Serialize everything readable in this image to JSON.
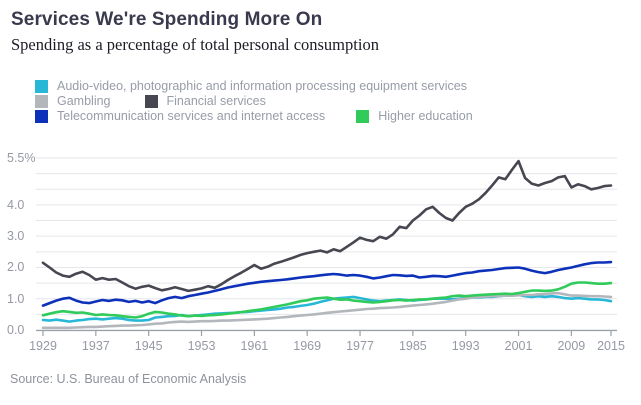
{
  "header": {
    "title": "Services We're Spending More On",
    "subtitle": "Spending as a percentage of total personal consumption"
  },
  "source": "Source: U.S. Bureau of Economic Analysis",
  "chart_data": {
    "type": "line",
    "title": "Services We're Spending More On",
    "subtitle": "Spending as a percentage of total personal consumption",
    "xlabel": "",
    "ylabel": "",
    "ylim": [
      0,
      5.5
    ],
    "grid_step": 0.5,
    "grid": true,
    "legend_position": "top",
    "x": [
      1929,
      1930,
      1931,
      1932,
      1933,
      1934,
      1935,
      1936,
      1937,
      1938,
      1939,
      1940,
      1941,
      1942,
      1943,
      1944,
      1945,
      1946,
      1947,
      1948,
      1949,
      1950,
      1951,
      1952,
      1953,
      1954,
      1955,
      1956,
      1957,
      1958,
      1959,
      1960,
      1961,
      1962,
      1963,
      1964,
      1965,
      1966,
      1967,
      1968,
      1969,
      1970,
      1971,
      1972,
      1973,
      1974,
      1975,
      1976,
      1977,
      1978,
      1979,
      1980,
      1981,
      1982,
      1983,
      1984,
      1985,
      1986,
      1987,
      1988,
      1989,
      1990,
      1991,
      1992,
      1993,
      1994,
      1995,
      1996,
      1997,
      1998,
      1999,
      2000,
      2001,
      2002,
      2003,
      2004,
      2005,
      2006,
      2007,
      2008,
      2009,
      2010,
      2011,
      2012,
      2013,
      2014,
      2015
    ],
    "xticks": [
      1929,
      1937,
      1945,
      1953,
      1961,
      1969,
      1977,
      1985,
      1993,
      2001,
      2009,
      2015
    ],
    "yticks": [
      {
        "v": 5.5,
        "label": "5.5%"
      },
      {
        "v": 4.0,
        "label": "4.0"
      },
      {
        "v": 3.0,
        "label": "3.0"
      },
      {
        "v": 2.0,
        "label": "2.0"
      },
      {
        "v": 1.0,
        "label": "1.0"
      },
      {
        "v": 0.0,
        "label": "0.0"
      }
    ],
    "series": [
      {
        "name": "Audio-video, photographic and information processing equipment services",
        "color": "#29b7d8",
        "values": [
          0.32,
          0.3,
          0.33,
          0.3,
          0.27,
          0.3,
          0.32,
          0.35,
          0.36,
          0.34,
          0.36,
          0.38,
          0.36,
          0.32,
          0.3,
          0.3,
          0.32,
          0.4,
          0.42,
          0.44,
          0.45,
          0.48,
          0.44,
          0.46,
          0.48,
          0.5,
          0.52,
          0.53,
          0.54,
          0.55,
          0.57,
          0.58,
          0.6,
          0.62,
          0.64,
          0.66,
          0.68,
          0.72,
          0.74,
          0.77,
          0.8,
          0.84,
          0.9,
          0.95,
          1.0,
          1.02,
          1.04,
          1.06,
          1.02,
          0.98,
          0.94,
          0.92,
          0.94,
          0.96,
          0.98,
          0.96,
          0.94,
          0.96,
          0.98,
          1.0,
          1.0,
          1.0,
          0.98,
          1.0,
          1.02,
          1.04,
          1.04,
          1.06,
          1.06,
          1.08,
          1.1,
          1.1,
          1.12,
          1.08,
          1.06,
          1.08,
          1.06,
          1.08,
          1.06,
          1.02,
          1.0,
          1.02,
          1.0,
          0.98,
          0.98,
          0.96,
          0.92
        ]
      },
      {
        "name": "Gambling",
        "color": "#b3b7bc",
        "values": [
          0.07,
          0.07,
          0.07,
          0.07,
          0.07,
          0.08,
          0.09,
          0.1,
          0.1,
          0.11,
          0.12,
          0.13,
          0.14,
          0.14,
          0.15,
          0.16,
          0.18,
          0.2,
          0.21,
          0.24,
          0.26,
          0.27,
          0.26,
          0.27,
          0.28,
          0.28,
          0.29,
          0.3,
          0.3,
          0.31,
          0.32,
          0.33,
          0.34,
          0.35,
          0.36,
          0.38,
          0.4,
          0.42,
          0.44,
          0.46,
          0.48,
          0.5,
          0.52,
          0.55,
          0.57,
          0.59,
          0.61,
          0.63,
          0.65,
          0.67,
          0.68,
          0.7,
          0.71,
          0.72,
          0.74,
          0.76,
          0.78,
          0.8,
          0.82,
          0.84,
          0.87,
          0.9,
          0.94,
          0.98,
          1.0,
          1.04,
          1.06,
          1.07,
          1.08,
          1.09,
          1.1,
          1.1,
          1.11,
          1.12,
          1.12,
          1.14,
          1.15,
          1.17,
          1.18,
          1.14,
          1.1,
          1.1,
          1.09,
          1.08,
          1.08,
          1.07,
          1.06
        ]
      },
      {
        "name": "Financial services",
        "color": "#474752",
        "values": [
          2.15,
          2.0,
          1.84,
          1.74,
          1.7,
          1.8,
          1.86,
          1.76,
          1.61,
          1.66,
          1.61,
          1.63,
          1.52,
          1.4,
          1.32,
          1.38,
          1.42,
          1.34,
          1.27,
          1.31,
          1.37,
          1.31,
          1.25,
          1.29,
          1.33,
          1.4,
          1.35,
          1.46,
          1.6,
          1.72,
          1.83,
          1.95,
          2.08,
          1.96,
          2.02,
          2.12,
          2.18,
          2.25,
          2.32,
          2.4,
          2.46,
          2.5,
          2.54,
          2.48,
          2.58,
          2.52,
          2.66,
          2.8,
          2.95,
          2.88,
          2.84,
          2.98,
          2.92,
          3.06,
          3.3,
          3.26,
          3.5,
          3.66,
          3.86,
          3.94,
          3.74,
          3.58,
          3.5,
          3.74,
          3.94,
          4.04,
          4.18,
          4.38,
          4.62,
          4.88,
          4.82,
          5.12,
          5.4,
          4.86,
          4.68,
          4.62,
          4.7,
          4.76,
          4.88,
          4.92,
          4.56,
          4.66,
          4.6,
          4.5,
          4.54,
          4.6,
          4.62
        ]
      },
      {
        "name": "Telecommunication services and internet access",
        "color": "#0e31ba",
        "values": [
          0.78,
          0.86,
          0.94,
          1.0,
          1.03,
          0.94,
          0.88,
          0.86,
          0.91,
          0.96,
          0.93,
          0.97,
          0.95,
          0.9,
          0.93,
          0.88,
          0.92,
          0.86,
          0.95,
          1.02,
          1.06,
          1.02,
          1.08,
          1.12,
          1.16,
          1.2,
          1.25,
          1.3,
          1.36,
          1.4,
          1.44,
          1.48,
          1.51,
          1.54,
          1.56,
          1.58,
          1.6,
          1.62,
          1.65,
          1.68,
          1.7,
          1.72,
          1.75,
          1.77,
          1.79,
          1.77,
          1.74,
          1.76,
          1.74,
          1.7,
          1.65,
          1.68,
          1.72,
          1.76,
          1.75,
          1.73,
          1.74,
          1.68,
          1.7,
          1.73,
          1.72,
          1.7,
          1.74,
          1.78,
          1.82,
          1.84,
          1.88,
          1.9,
          1.92,
          1.95,
          1.98,
          1.99,
          2.0,
          1.96,
          1.9,
          1.85,
          1.82,
          1.86,
          1.92,
          1.96,
          2.0,
          2.05,
          2.1,
          2.14,
          2.16,
          2.16,
          2.17
        ]
      },
      {
        "name": "Higher education",
        "color": "#30cb5a",
        "values": [
          0.47,
          0.52,
          0.57,
          0.6,
          0.58,
          0.55,
          0.56,
          0.52,
          0.48,
          0.5,
          0.48,
          0.47,
          0.44,
          0.42,
          0.4,
          0.44,
          0.52,
          0.58,
          0.56,
          0.52,
          0.5,
          0.46,
          0.44,
          0.46,
          0.45,
          0.47,
          0.48,
          0.5,
          0.52,
          0.55,
          0.57,
          0.6,
          0.63,
          0.66,
          0.7,
          0.74,
          0.78,
          0.82,
          0.87,
          0.92,
          0.95,
          1.0,
          1.02,
          1.04,
          1.0,
          0.97,
          0.98,
          0.94,
          0.92,
          0.9,
          0.88,
          0.9,
          0.92,
          0.95,
          0.96,
          0.94,
          0.96,
          0.98,
          0.98,
          1.0,
          1.02,
          1.04,
          1.08,
          1.1,
          1.08,
          1.1,
          1.12,
          1.13,
          1.14,
          1.15,
          1.16,
          1.15,
          1.18,
          1.22,
          1.26,
          1.26,
          1.25,
          1.26,
          1.3,
          1.38,
          1.48,
          1.52,
          1.52,
          1.5,
          1.48,
          1.48,
          1.5
        ]
      }
    ]
  }
}
